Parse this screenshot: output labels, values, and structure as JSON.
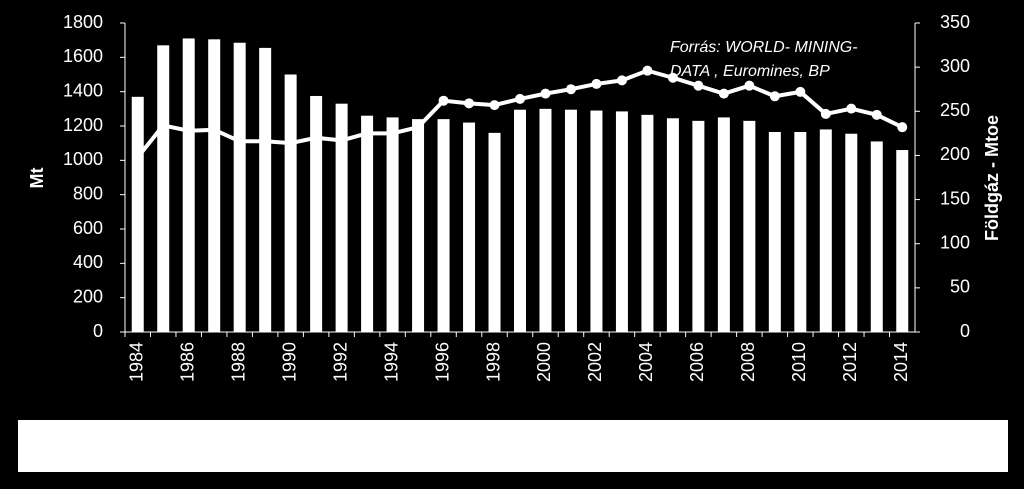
{
  "chart_data": {
    "type": "bar-line",
    "categories": [
      "1984",
      null,
      "1986",
      null,
      "1988",
      null,
      "1990",
      null,
      "1992",
      null,
      "1994",
      null,
      "1996",
      null,
      "1998",
      null,
      "2000",
      null,
      "2002",
      null,
      "2004",
      null,
      "2006",
      null,
      "2008",
      null,
      "2010",
      null,
      "2012",
      null,
      "2014"
    ],
    "series": [
      {
        "type": "bar",
        "color": "#ffffff",
        "values": [
          1370,
          1670,
          1710,
          1705,
          1685,
          1655,
          1500,
          1375,
          1330,
          1260,
          1250,
          1240,
          1240,
          1220,
          1160,
          1295,
          1300,
          1295,
          1290,
          1285,
          1265,
          1245,
          1230,
          1250,
          1230,
          1165,
          1165,
          1180,
          1155,
          1110,
          1060
        ]
      },
      {
        "type": "line",
        "axis": "y2",
        "color": "#ffffff",
        "values": [
          198,
          234,
          228,
          229,
          216,
          216,
          214,
          220,
          217,
          225,
          225,
          232,
          262,
          259,
          257,
          264,
          270,
          275,
          281,
          285,
          296,
          288,
          279,
          270,
          279,
          267,
          272,
          247,
          253,
          246,
          232
        ]
      }
    ],
    "ylabel": "Mt",
    "y2label": "Földgáz - Mtoe",
    "ylim": [
      0,
      1800
    ],
    "yticks": [
      0,
      200,
      400,
      600,
      800,
      1000,
      1200,
      1400,
      1600,
      1800
    ],
    "y2lim": [
      0,
      350
    ],
    "y2ticks": [
      0,
      50,
      100,
      150,
      200,
      250,
      300,
      350
    ],
    "annotation": [
      "Forrás: WORLD- MINING-",
      "DATA , Euromines, BP"
    ]
  }
}
